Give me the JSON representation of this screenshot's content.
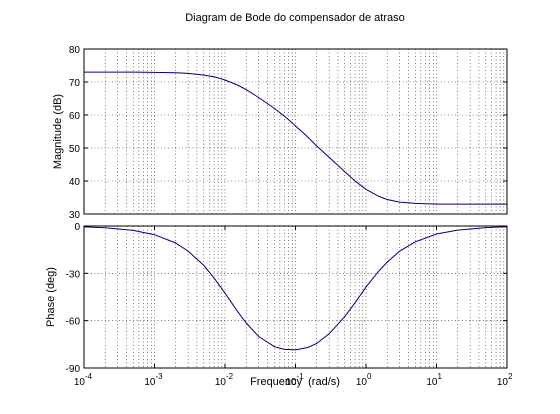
{
  "chart_data": [
    {
      "type": "line",
      "title": "Diagram de Bode do compensador de atraso",
      "xlabel": "",
      "ylabel": "Magnitude (dB)",
      "xscale": "log",
      "xlim": [
        0.0001,
        100
      ],
      "ylim": [
        30,
        80
      ],
      "grid": true,
      "yticks": [
        30,
        40,
        50,
        60,
        70,
        80
      ],
      "ytick_labels": [
        "30",
        "40",
        "50",
        "60",
        "70",
        "80"
      ],
      "series": [
        {
          "color": "#00007f",
          "x": [
            0.0001,
            0.0002,
            0.0005,
            0.001,
            0.002,
            0.003,
            0.005,
            0.007,
            0.01,
            0.015,
            0.02,
            0.03,
            0.05,
            0.07,
            0.1,
            0.15,
            0.2,
            0.3,
            0.5,
            0.7,
            1,
            1.5,
            2,
            3,
            5,
            10,
            20,
            50,
            100
          ],
          "y": [
            73.0,
            73.0,
            73.0,
            72.9,
            72.8,
            72.6,
            72.1,
            71.6,
            70.6,
            69.1,
            67.7,
            65.3,
            62.0,
            59.6,
            56.7,
            53.3,
            50.6,
            47.2,
            42.8,
            40.0,
            37.5,
            35.4,
            34.4,
            33.6,
            33.2,
            33.0,
            33.0,
            33.0,
            33.0
          ]
        }
      ]
    },
    {
      "type": "line",
      "xlabel": "Frequency  (rad/s)",
      "ylabel": "Phase (deg)",
      "xscale": "log",
      "xlim": [
        0.0001,
        100
      ],
      "ylim": [
        -90,
        0
      ],
      "grid": true,
      "yticks": [
        -90,
        -60,
        -30,
        0
      ],
      "ytick_labels": [
        "-90",
        "-60",
        "-30",
        "0"
      ],
      "xticks": [
        0.0001,
        0.001,
        0.01,
        0.1,
        1,
        10,
        100
      ],
      "xtick_bases": [
        "10",
        "10",
        "10",
        "10",
        "10",
        "10",
        "10"
      ],
      "xtick_exponents": [
        "-4",
        "-3",
        "-2",
        "-1",
        "0",
        "1",
        "2"
      ],
      "series": [
        {
          "color": "#00007f",
          "x": [
            0.0001,
            0.0002,
            0.0005,
            0.001,
            0.002,
            0.003,
            0.005,
            0.007,
            0.01,
            0.015,
            0.02,
            0.03,
            0.05,
            0.07,
            0.1,
            0.15,
            0.2,
            0.3,
            0.5,
            0.7,
            1,
            1.5,
            2,
            3,
            5,
            10,
            20,
            50,
            100
          ],
          "y": [
            -0.6,
            -1.1,
            -2.8,
            -5.5,
            -10.8,
            -15.9,
            -25.0,
            -33.0,
            -42.6,
            -54.0,
            -61.5,
            -70.0,
            -76.5,
            -78.2,
            -78.5,
            -77.0,
            -74.5,
            -68.3,
            -57.4,
            -48.6,
            -38.7,
            -28.8,
            -22.9,
            -16.0,
            -10.0,
            -5.1,
            -2.6,
            -1.0,
            -0.5
          ]
        }
      ]
    }
  ]
}
